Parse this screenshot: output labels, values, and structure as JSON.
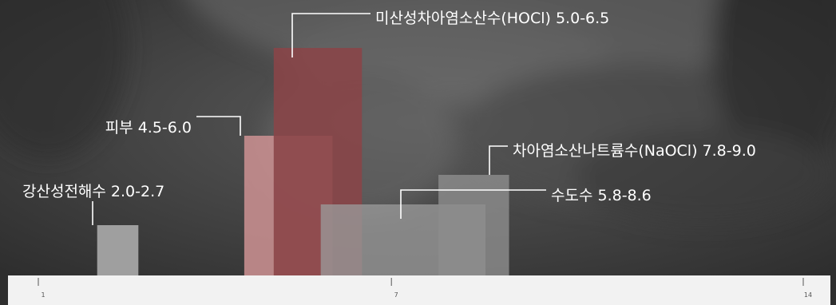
{
  "chart_data": {
    "type": "bar",
    "xlim": [
      1,
      14
    ],
    "x_ticks": [
      "1",
      "7",
      "14"
    ],
    "series": [
      {
        "label": "강산성전해수 2.0-2.7",
        "range": [
          2.0,
          2.7
        ],
        "color": "#a8a8a8"
      },
      {
        "label": "피부 4.5-6.0",
        "range": [
          4.5,
          6.0
        ],
        "color": "#c98f91"
      },
      {
        "label": "미산성차아염소산수(HOCl) 5.0-6.5",
        "range": [
          5.0,
          6.5
        ],
        "color": "#8a4448"
      },
      {
        "label": "수도수 5.8-8.6",
        "range": [
          5.8,
          8.6
        ],
        "color": "#9a9a9a"
      },
      {
        "label": "차아염소산나트륨수(NaOCl) 7.8-9.0",
        "range": [
          7.8,
          9.0
        ],
        "color": "#8c8c8c"
      }
    ]
  }
}
